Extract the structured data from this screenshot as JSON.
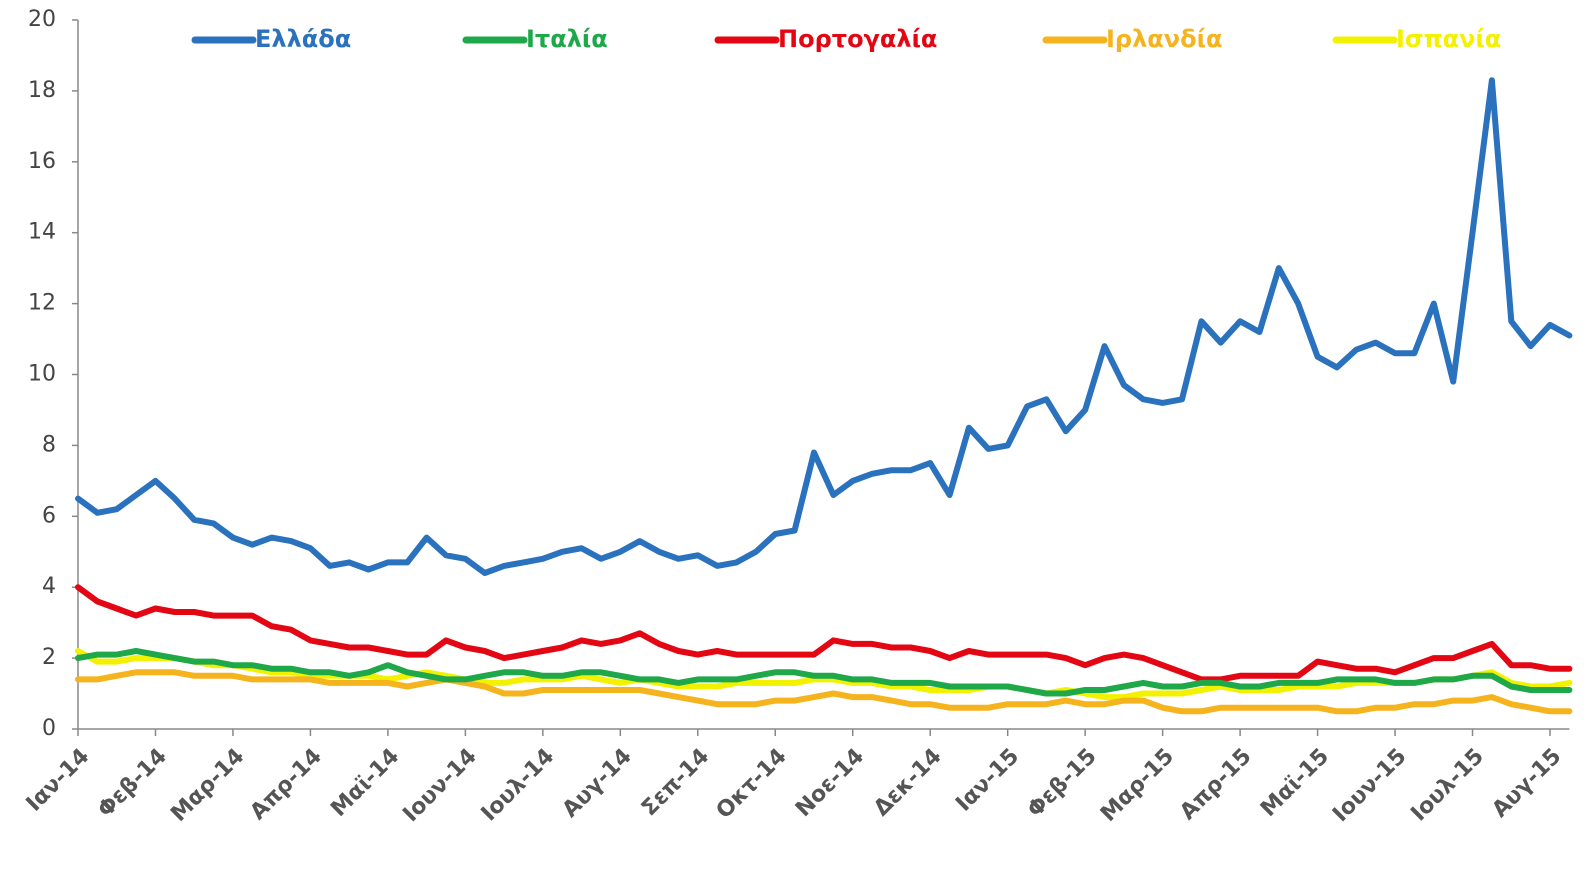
{
  "chart_data": {
    "type": "line",
    "categories": [
      "Ιαν-14",
      null,
      null,
      null,
      "Φεβ-14",
      null,
      null,
      null,
      "Μαρ-14",
      null,
      null,
      null,
      "Απρ-14",
      null,
      null,
      null,
      "Μαϊ-14",
      null,
      null,
      null,
      "Ιουν-14",
      null,
      null,
      null,
      "Ιουλ-14",
      null,
      null,
      null,
      "Αυγ-14",
      null,
      null,
      null,
      "Σεπ-14",
      null,
      null,
      null,
      "Οκτ-14",
      null,
      null,
      null,
      "Νοε-14",
      null,
      null,
      null,
      "Δεκ-14",
      null,
      null,
      null,
      "Ιαν-15",
      null,
      null,
      null,
      "Φεβ-15",
      null,
      null,
      null,
      "Μαρ-15",
      null,
      null,
      null,
      "Απρ-15",
      null,
      null,
      null,
      "Μαϊ-15",
      null,
      null,
      null,
      "Ιουν-15",
      null,
      null,
      null,
      "Ιουλ-15",
      null,
      null,
      null,
      "Αυγ-15",
      null
    ],
    "series": [
      {
        "name": "Ελλάδα",
        "color": "#2a72bd",
        "values": [
          6.5,
          6.1,
          6.2,
          6.6,
          7.0,
          6.5,
          5.9,
          5.8,
          5.4,
          5.2,
          5.4,
          5.3,
          5.1,
          4.6,
          4.7,
          4.5,
          4.7,
          4.7,
          5.4,
          4.9,
          4.8,
          4.4,
          4.6,
          4.7,
          4.8,
          5.0,
          5.1,
          4.8,
          5.0,
          5.3,
          5.0,
          4.8,
          4.9,
          4.6,
          4.7,
          5.0,
          5.5,
          5.6,
          7.8,
          6.6,
          7.0,
          7.2,
          7.3,
          7.3,
          7.5,
          6.6,
          8.5,
          7.9,
          8.0,
          9.1,
          9.3,
          8.4,
          9.0,
          10.8,
          9.7,
          9.3,
          9.2,
          9.3,
          11.5,
          10.9,
          11.5,
          11.2,
          13.0,
          12.0,
          10.5,
          10.2,
          10.7,
          10.9,
          10.6,
          10.6,
          12.0,
          9.8,
          14.0,
          18.3,
          11.5,
          10.8,
          11.4,
          11.1
        ]
      },
      {
        "name": "Ιταλία",
        "color": "#1ea84a",
        "values": [
          2.0,
          2.1,
          2.1,
          2.2,
          2.1,
          2.0,
          1.9,
          1.9,
          1.8,
          1.8,
          1.7,
          1.7,
          1.6,
          1.6,
          1.5,
          1.6,
          1.8,
          1.6,
          1.5,
          1.4,
          1.4,
          1.5,
          1.6,
          1.6,
          1.5,
          1.5,
          1.6,
          1.6,
          1.5,
          1.4,
          1.4,
          1.3,
          1.4,
          1.4,
          1.4,
          1.5,
          1.6,
          1.6,
          1.5,
          1.5,
          1.4,
          1.4,
          1.3,
          1.3,
          1.3,
          1.2,
          1.2,
          1.2,
          1.2,
          1.1,
          1.0,
          1.0,
          1.1,
          1.1,
          1.2,
          1.3,
          1.2,
          1.2,
          1.3,
          1.3,
          1.2,
          1.2,
          1.3,
          1.3,
          1.3,
          1.4,
          1.4,
          1.4,
          1.3,
          1.3,
          1.4,
          1.4,
          1.5,
          1.5,
          1.2,
          1.1,
          1.1,
          1.1
        ]
      },
      {
        "name": "Πορτογαλία",
        "color": "#e30613",
        "values": [
          4.0,
          3.6,
          3.4,
          3.2,
          3.4,
          3.3,
          3.3,
          3.2,
          3.2,
          3.2,
          2.9,
          2.8,
          2.5,
          2.4,
          2.3,
          2.3,
          2.2,
          2.1,
          2.1,
          2.5,
          2.3,
          2.2,
          2.0,
          2.1,
          2.2,
          2.3,
          2.5,
          2.4,
          2.5,
          2.7,
          2.4,
          2.2,
          2.1,
          2.2,
          2.1,
          2.1,
          2.1,
          2.1,
          2.1,
          2.5,
          2.4,
          2.4,
          2.3,
          2.3,
          2.2,
          2.0,
          2.2,
          2.1,
          2.1,
          2.1,
          2.1,
          2.0,
          1.8,
          2.0,
          2.1,
          2.0,
          1.8,
          1.6,
          1.4,
          1.4,
          1.5,
          1.5,
          1.5,
          1.5,
          1.9,
          1.8,
          1.7,
          1.7,
          1.6,
          1.8,
          2.0,
          2.0,
          2.2,
          2.4,
          1.8,
          1.8,
          1.7,
          1.7
        ]
      },
      {
        "name": "Ιρλανδία",
        "color": "#f5b41e",
        "values": [
          1.4,
          1.4,
          1.5,
          1.6,
          1.6,
          1.6,
          1.5,
          1.5,
          1.5,
          1.4,
          1.4,
          1.4,
          1.4,
          1.3,
          1.3,
          1.3,
          1.3,
          1.2,
          1.3,
          1.4,
          1.3,
          1.2,
          1.0,
          1.0,
          1.1,
          1.1,
          1.1,
          1.1,
          1.1,
          1.1,
          1.0,
          0.9,
          0.8,
          0.7,
          0.7,
          0.7,
          0.8,
          0.8,
          0.9,
          1.0,
          0.9,
          0.9,
          0.8,
          0.7,
          0.7,
          0.6,
          0.6,
          0.6,
          0.7,
          0.7,
          0.7,
          0.8,
          0.7,
          0.7,
          0.8,
          0.8,
          0.6,
          0.5,
          0.5,
          0.6,
          0.6,
          0.6,
          0.6,
          0.6,
          0.6,
          0.5,
          0.5,
          0.6,
          0.6,
          0.7,
          0.7,
          0.8,
          0.8,
          0.9,
          0.7,
          0.6,
          0.5,
          0.5
        ]
      },
      {
        "name": "Ισπανία",
        "color": "#f2f200",
        "values": [
          2.2,
          1.9,
          1.9,
          2.0,
          2.0,
          2.0,
          1.9,
          1.8,
          1.8,
          1.7,
          1.6,
          1.6,
          1.5,
          1.5,
          1.5,
          1.5,
          1.4,
          1.5,
          1.6,
          1.5,
          1.4,
          1.3,
          1.3,
          1.4,
          1.4,
          1.4,
          1.5,
          1.4,
          1.3,
          1.4,
          1.3,
          1.2,
          1.2,
          1.2,
          1.3,
          1.3,
          1.3,
          1.3,
          1.4,
          1.4,
          1.3,
          1.3,
          1.2,
          1.2,
          1.1,
          1.1,
          1.1,
          1.2,
          1.2,
          1.1,
          1.0,
          1.1,
          1.0,
          0.9,
          0.9,
          1.0,
          1.0,
          1.0,
          1.1,
          1.2,
          1.1,
          1.1,
          1.1,
          1.2,
          1.2,
          1.2,
          1.3,
          1.3,
          1.3,
          1.3,
          1.4,
          1.4,
          1.5,
          1.6,
          1.3,
          1.2,
          1.2,
          1.3
        ]
      }
    ],
    "ylim": [
      0,
      20
    ],
    "yticks": [
      0,
      2,
      4,
      6,
      8,
      10,
      12,
      14,
      16,
      18,
      20
    ],
    "grid": false,
    "legend": "top"
  }
}
